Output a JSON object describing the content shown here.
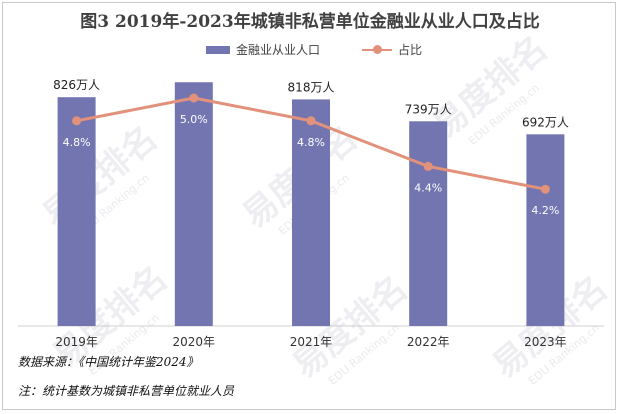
{
  "watermark": {
    "cn": "易度排名",
    "en": "EDU Ranking.cn"
  },
  "chart_data": {
    "type": "bar+line",
    "title": "图3  2019年-2023年城镇非私营单位金融业从业人口及占比",
    "categories": [
      "2019年",
      "2020年",
      "2021年",
      "2022年",
      "2023年"
    ],
    "series": [
      {
        "name": "金融业从业人口",
        "type": "bar",
        "color": "#7275b0",
        "values": [
          826,
          null,
          818,
          739,
          692
        ],
        "labels": [
          "826万人",
          "",
          "818万人",
          "739万人",
          "692万人"
        ]
      },
      {
        "name": "占比",
        "type": "line",
        "color": "#e2917a",
        "values": [
          4.8,
          5.0,
          4.8,
          4.4,
          4.2
        ],
        "labels": [
          "4.8%",
          "5.0%",
          "4.8%",
          "4.4%",
          "4.2%"
        ]
      }
    ],
    "legend_position": "top",
    "grid": false
  },
  "notes": {
    "source": "数据来源：《中国统计年鉴2024》",
    "remark": "注：统计基数为城镇非私营单位就业人员"
  }
}
